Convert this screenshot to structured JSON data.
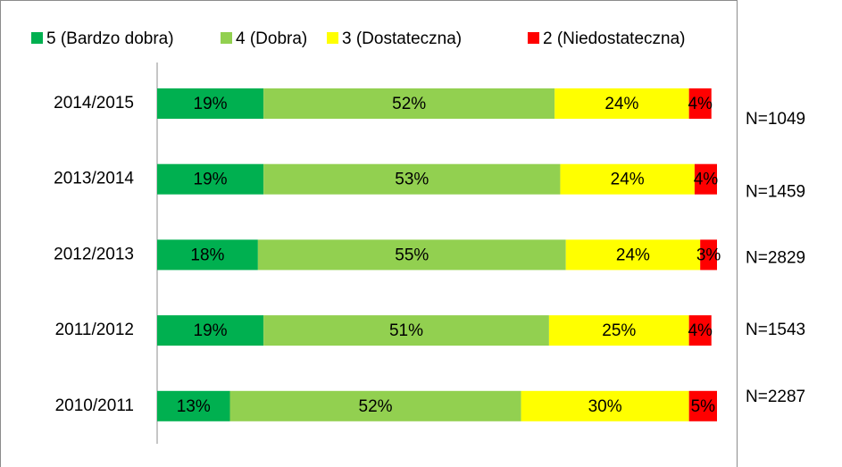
{
  "chart_data": {
    "type": "stacked-bar-horizontal",
    "categories": [
      "2014/2015",
      "2013/2014",
      "2012/2013",
      "2011/2012",
      "2010/2011"
    ],
    "series": [
      {
        "name": "5 (Bardzo dobra)",
        "color": "#00b050",
        "values": [
          19,
          19,
          18,
          19,
          13
        ],
        "value_labels": [
          "19%",
          "19%",
          "18%",
          "19%",
          "13%"
        ]
      },
      {
        "name": "4 (Dobra)",
        "color": "#92d050",
        "values": [
          52,
          53,
          55,
          51,
          52
        ],
        "value_labels": [
          "52%",
          "53%",
          "55%",
          "51%",
          "52%"
        ]
      },
      {
        "name": "3 (Dostateczna)",
        "color": "#ffff00",
        "values": [
          24,
          24,
          24,
          25,
          30
        ],
        "value_labels": [
          "24%",
          "24%",
          "24%",
          "25%",
          "30%"
        ]
      },
      {
        "name": "2 (Niedostateczna)",
        "color": "#ff0000",
        "values": [
          4,
          4,
          3,
          4,
          5
        ],
        "value_labels": [
          "4%",
          "4%",
          "3%",
          "4%",
          "5%"
        ]
      }
    ],
    "xlim": [
      0,
      100
    ],
    "legend": "top",
    "annotations": [
      "N=1049",
      "N=1459",
      "N=2829",
      "N=1543",
      "N=2287"
    ]
  }
}
